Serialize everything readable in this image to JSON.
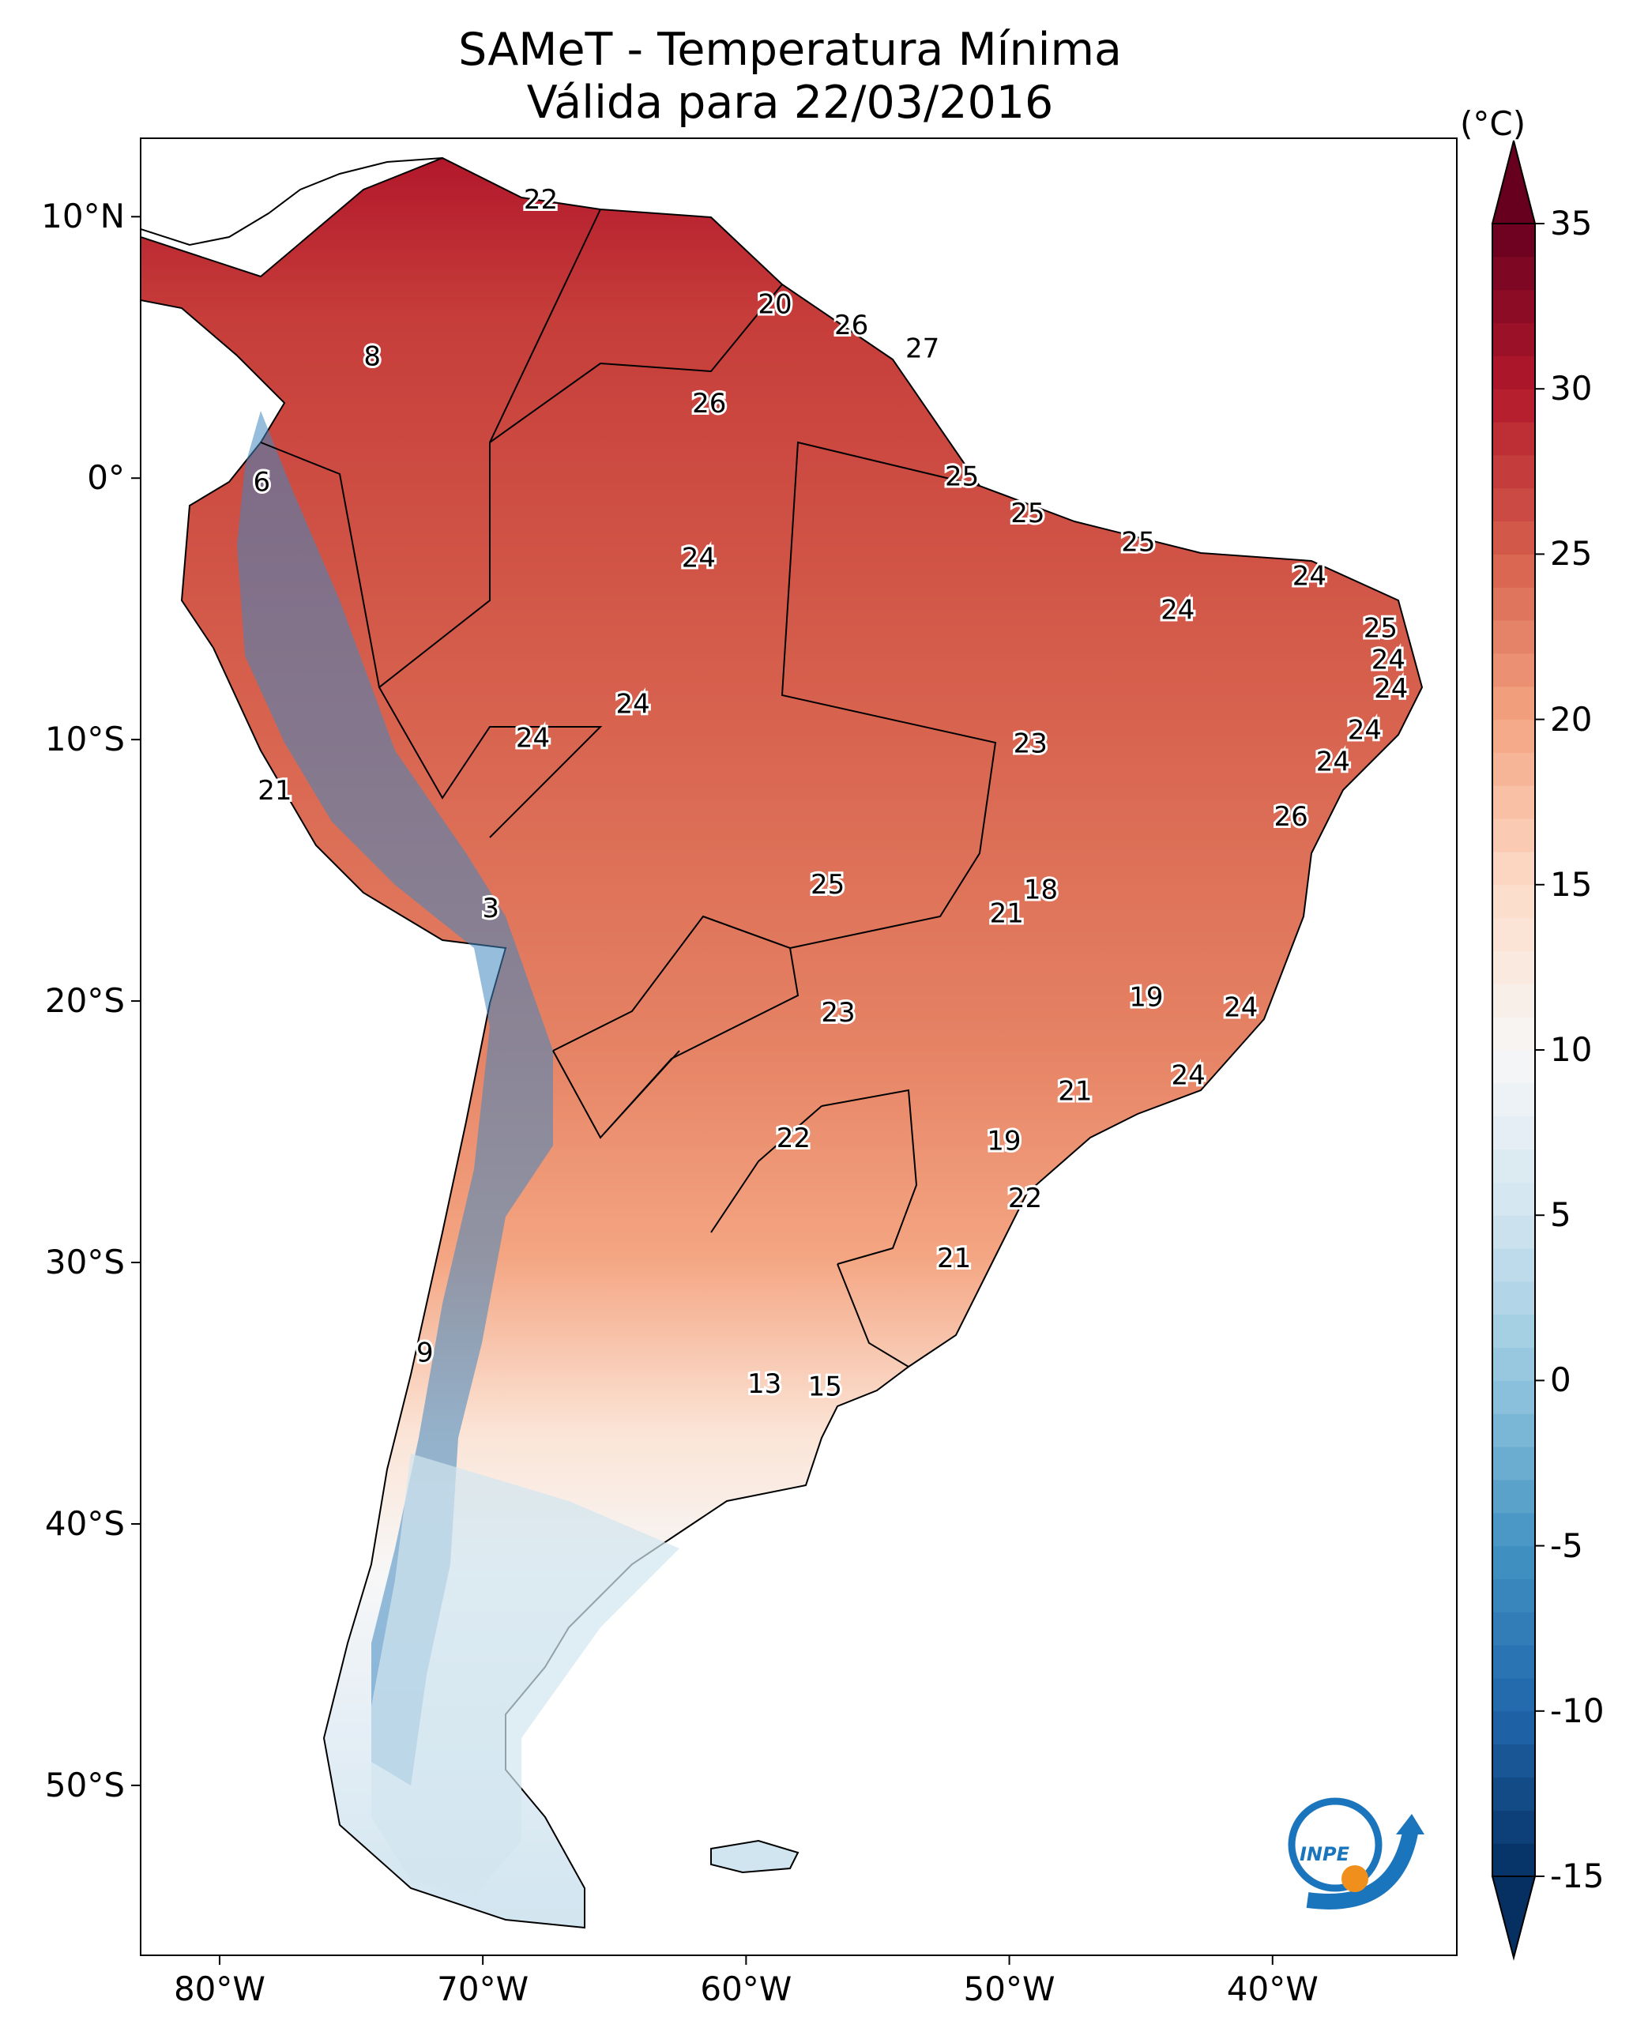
{
  "title": {
    "line1": "SAMeT - Temperatura Mínima",
    "line2": "Válida para 22/03/2016"
  },
  "map": {
    "lon_range": [
      -83,
      -33
    ],
    "lat_range": [
      -56.5,
      13
    ],
    "lat_ticks": [
      {
        "value": 10,
        "label": "10°N"
      },
      {
        "value": 0,
        "label": "0°"
      },
      {
        "value": -10,
        "label": "10°S"
      },
      {
        "value": -20,
        "label": "20°S"
      },
      {
        "value": -30,
        "label": "30°S"
      },
      {
        "value": -40,
        "label": "40°S"
      },
      {
        "value": -50,
        "label": "50°S"
      }
    ],
    "lon_ticks": [
      {
        "value": -80,
        "label": "80°W"
      },
      {
        "value": -70,
        "label": "70°W"
      },
      {
        "value": -60,
        "label": "60°W"
      },
      {
        "value": -50,
        "label": "50°W"
      },
      {
        "value": -40,
        "label": "40°W"
      }
    ],
    "station_labels": [
      {
        "text": "22",
        "lon": -67.8,
        "lat": 10.6
      },
      {
        "text": "20",
        "lon": -58.9,
        "lat": 6.6
      },
      {
        "text": "26",
        "lon": -56.0,
        "lat": 5.8
      },
      {
        "text": "27",
        "lon": -53.3,
        "lat": 4.9
      },
      {
        "text": "8",
        "lon": -74.2,
        "lat": 4.6
      },
      {
        "text": "26",
        "lon": -61.4,
        "lat": 2.8
      },
      {
        "text": "25",
        "lon": -51.8,
        "lat": 0.0
      },
      {
        "text": "6",
        "lon": -78.4,
        "lat": -0.2
      },
      {
        "text": "25",
        "lon": -49.3,
        "lat": -1.4
      },
      {
        "text": "25",
        "lon": -45.1,
        "lat": -2.5
      },
      {
        "text": "24",
        "lon": -61.8,
        "lat": -3.1
      },
      {
        "text": "24",
        "lon": -38.6,
        "lat": -3.8
      },
      {
        "text": "24",
        "lon": -43.6,
        "lat": -5.1
      },
      {
        "text": "25",
        "lon": -35.9,
        "lat": -5.8
      },
      {
        "text": "24",
        "lon": -35.6,
        "lat": -7.0
      },
      {
        "text": "24",
        "lon": -35.5,
        "lat": -8.1
      },
      {
        "text": "24",
        "lon": -64.3,
        "lat": -8.7
      },
      {
        "text": "24",
        "lon": -36.5,
        "lat": -9.7
      },
      {
        "text": "24",
        "lon": -68.1,
        "lat": -10.0
      },
      {
        "text": "23",
        "lon": -49.2,
        "lat": -10.2
      },
      {
        "text": "24",
        "lon": -37.7,
        "lat": -10.9
      },
      {
        "text": "21",
        "lon": -77.9,
        "lat": -12.0
      },
      {
        "text": "26",
        "lon": -39.3,
        "lat": -13.0
      },
      {
        "text": "25",
        "lon": -56.9,
        "lat": -15.6
      },
      {
        "text": "18",
        "lon": -48.8,
        "lat": -15.8
      },
      {
        "text": "3",
        "lon": -69.7,
        "lat": -16.5
      },
      {
        "text": "21",
        "lon": -50.1,
        "lat": -16.7
      },
      {
        "text": "19",
        "lon": -44.8,
        "lat": -19.9
      },
      {
        "text": "24",
        "lon": -41.2,
        "lat": -20.3
      },
      {
        "text": "23",
        "lon": -56.5,
        "lat": -20.5
      },
      {
        "text": "24",
        "lon": -43.2,
        "lat": -22.9
      },
      {
        "text": "21",
        "lon": -47.5,
        "lat": -23.5
      },
      {
        "text": "22",
        "lon": -58.2,
        "lat": -25.3
      },
      {
        "text": "19",
        "lon": -50.2,
        "lat": -25.4
      },
      {
        "text": "22",
        "lon": -49.4,
        "lat": -27.6
      },
      {
        "text": "21",
        "lon": -52.1,
        "lat": -29.9
      },
      {
        "text": "9",
        "lon": -72.2,
        "lat": -33.5
      },
      {
        "text": "13",
        "lon": -59.3,
        "lat": -34.7
      },
      {
        "text": "15",
        "lon": -57.0,
        "lat": -34.8
      }
    ]
  },
  "colorbar": {
    "unit": "(°C)",
    "range": [
      -15,
      35
    ],
    "colors": [
      "#053061",
      "#2166ac",
      "#4393c3",
      "#92c5de",
      "#d1e5f0",
      "#f7f7f7",
      "#fddbc7",
      "#f4a582",
      "#d6604d",
      "#b2182b",
      "#67001f"
    ],
    "ticks": [
      {
        "value": 35,
        "label": "35"
      },
      {
        "value": 30,
        "label": "30"
      },
      {
        "value": 25,
        "label": "25"
      },
      {
        "value": 20,
        "label": "20"
      },
      {
        "value": 15,
        "label": "15"
      },
      {
        "value": 10,
        "label": "10"
      },
      {
        "value": 5,
        "label": "5"
      },
      {
        "value": 0,
        "label": "0"
      },
      {
        "value": -5,
        "label": "-5"
      },
      {
        "value": -10,
        "label": "-10"
      },
      {
        "value": -15,
        "label": "-15"
      }
    ]
  },
  "logo": {
    "text": "INPE"
  }
}
